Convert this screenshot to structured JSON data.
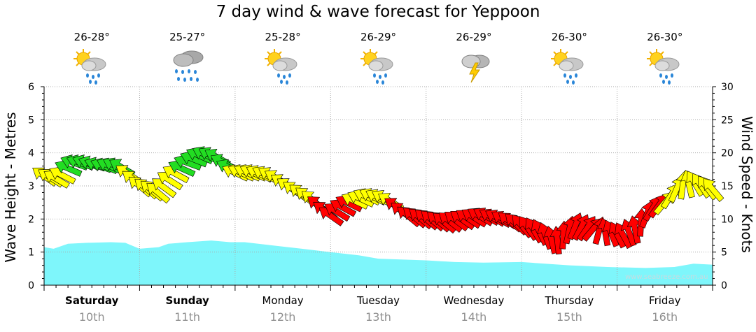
{
  "title": "7 day wind & wave forecast for Yeppoon",
  "days": [
    {
      "name": "Saturday",
      "date": "10th",
      "temp": "26-28°",
      "icon": "sun-cloud-rain-icon",
      "bold": true
    },
    {
      "name": "Sunday",
      "date": "11th",
      "temp": "25-27°",
      "icon": "heavy-rain-icon",
      "bold": true
    },
    {
      "name": "Monday",
      "date": "12th",
      "temp": "25-28°",
      "icon": "sun-cloud-rain-icon",
      "bold": false
    },
    {
      "name": "Tuesday",
      "date": "13th",
      "temp": "26-29°",
      "icon": "sun-cloud-rain-icon",
      "bold": false
    },
    {
      "name": "Wednesday",
      "date": "14th",
      "temp": "26-29°",
      "icon": "thunderstorm-icon",
      "bold": false
    },
    {
      "name": "Thursday",
      "date": "15th",
      "temp": "26-30°",
      "icon": "sun-cloud-rain-icon",
      "bold": false
    },
    {
      "name": "Friday",
      "date": "16th",
      "temp": "26-30°",
      "icon": "sun-cloud-rain-icon",
      "bold": false
    }
  ],
  "watermark": "www.seabreeze.com.au",
  "colors": {
    "wave_fill": "#7ef6fb",
    "wind_low": "#22dd22",
    "wind_mid": "#ffff00",
    "wind_high": "#ff0000",
    "grid": "#aaaaaa"
  },
  "chart_data": {
    "type": "area+arrows",
    "title": "7 day wind & wave forecast for Yeppoon",
    "ylabel_left": "Wave Height - Metres",
    "ylabel_right": "Wind Speed - Knots",
    "y_left": {
      "min": 0,
      "max": 6,
      "ticks": [
        "0",
        "1",
        "2",
        "3",
        "4",
        "5",
        "6"
      ]
    },
    "y_right": {
      "min": 0,
      "max": 30,
      "ticks": [
        "0",
        "5",
        "10",
        "15",
        "20",
        "25",
        "30"
      ]
    },
    "x_unit": "day index from Saturday 00:00",
    "x_range": [
      0,
      7
    ],
    "wave_series": {
      "name": "Wave Height",
      "x": [
        0,
        0.1,
        0.25,
        0.45,
        0.7,
        0.85,
        1.0,
        1.2,
        1.3,
        1.5,
        1.75,
        1.95,
        2.1,
        2.4,
        2.7,
        3.0,
        3.3,
        3.5,
        4.0,
        4.3,
        4.6,
        5.0,
        5.5,
        5.9,
        6.3,
        6.6,
        6.8,
        7.0
      ],
      "y": [
        1.15,
        1.1,
        1.25,
        1.28,
        1.3,
        1.28,
        1.1,
        1.15,
        1.25,
        1.3,
        1.35,
        1.3,
        1.3,
        1.2,
        1.1,
        1.0,
        0.9,
        0.8,
        0.75,
        0.7,
        0.68,
        0.7,
        0.6,
        0.55,
        0.52,
        0.55,
        0.65,
        0.62
      ]
    },
    "wind_series": {
      "name": "Wind Speed (knots)",
      "x": [
        0.0,
        0.15,
        0.3,
        0.45,
        0.6,
        0.8,
        1.0,
        1.2,
        1.35,
        1.5,
        1.65,
        1.8,
        2.0,
        2.2,
        2.4,
        2.6,
        2.8,
        3.0,
        3.2,
        3.4,
        3.6,
        3.8,
        4.0,
        4.2,
        4.4,
        4.6,
        4.8,
        5.0,
        5.2,
        5.35,
        5.55,
        5.75,
        5.9,
        6.05,
        6.2,
        6.35,
        6.5,
        6.65,
        6.8,
        7.0
      ],
      "y": [
        16.5,
        16.0,
        18.5,
        18.5,
        18.0,
        18.0,
        15.0,
        14.0,
        16.5,
        18.5,
        19.8,
        19.5,
        17.0,
        17.0,
        16.5,
        14.5,
        13.0,
        10.5,
        12.5,
        13.5,
        13.0,
        10.5,
        10.0,
        9.5,
        10.0,
        10.5,
        10.0,
        9.0,
        8.0,
        6.5,
        9.0,
        8.5,
        8.0,
        7.5,
        8.5,
        11.5,
        12.5,
        15.0,
        15.5,
        14.5
      ],
      "direction_deg_from": [
        125,
        120,
        110,
        110,
        110,
        120,
        130,
        130,
        120,
        110,
        115,
        120,
        115,
        115,
        120,
        125,
        130,
        125,
        115,
        115,
        120,
        130,
        130,
        130,
        125,
        120,
        120,
        140,
        155,
        170,
        200,
        220,
        160,
        150,
        170,
        210,
        220,
        200,
        150,
        140
      ],
      "color_bands": {
        "green_min": 17.5,
        "yellow_min": 12.5,
        "red_below": 12.5
      }
    },
    "x_tick_labels": [
      "Saturday",
      "Sunday",
      "Monday",
      "Tuesday",
      "Wednesday",
      "Thursday",
      "Friday"
    ],
    "x_tick_sublabels": [
      "10th",
      "11th",
      "12th",
      "13th",
      "14th",
      "15th",
      "16th"
    ],
    "grid": true
  }
}
